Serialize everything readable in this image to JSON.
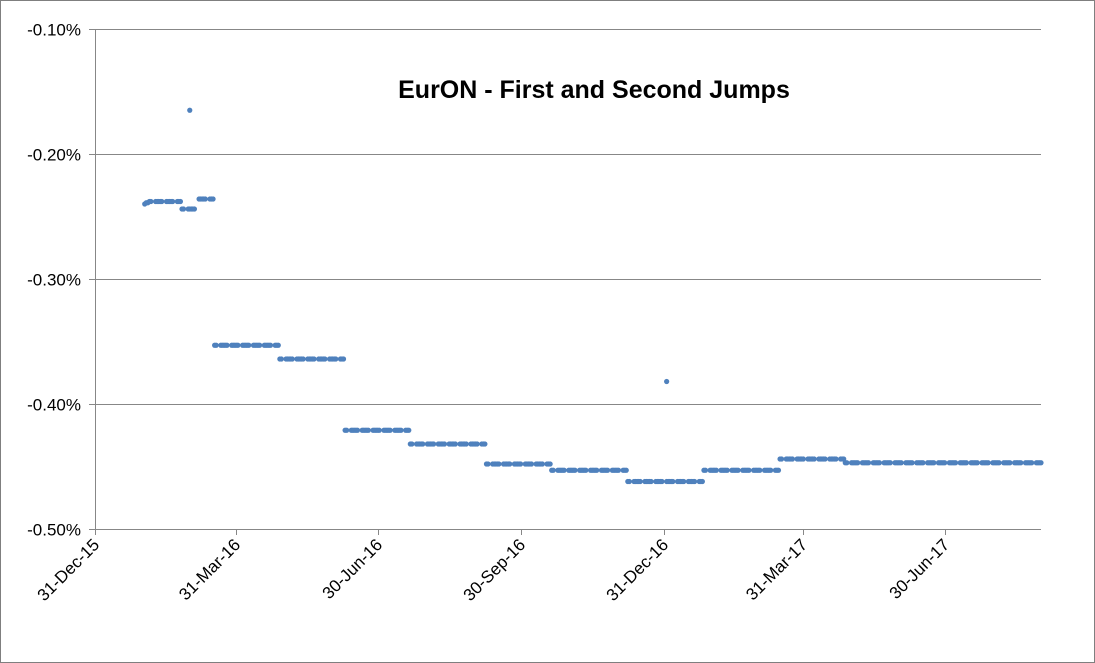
{
  "chart_data": {
    "type": "scatter",
    "title": "EurON - First and Second Jumps",
    "xlabel": "",
    "ylabel": "",
    "x_axis": {
      "kind": "date",
      "min": "2015-12-31",
      "max": "2017-08-31",
      "ticks": [
        {
          "date": "2015-12-31",
          "label": "31-Dec-15"
        },
        {
          "date": "2016-03-31",
          "label": "31-Mar-16"
        },
        {
          "date": "2016-06-30",
          "label": "30-Jun-16"
        },
        {
          "date": "2016-09-30",
          "label": "30-Sep-16"
        },
        {
          "date": "2016-12-31",
          "label": "31-Dec-16"
        },
        {
          "date": "2017-03-31",
          "label": "31-Mar-17"
        },
        {
          "date": "2017-06-30",
          "label": "30-Jun-17"
        }
      ]
    },
    "y_axis": {
      "ylim": [
        -0.5,
        -0.1
      ],
      "unit": "%",
      "ticks": [
        {
          "value": -0.1,
          "label": "-0.10%"
        },
        {
          "value": -0.2,
          "label": "-0.20%"
        },
        {
          "value": -0.3,
          "label": "-0.30%"
        },
        {
          "value": -0.4,
          "label": "-0.40%"
        },
        {
          "value": -0.5,
          "label": "-0.50%"
        }
      ]
    },
    "grid": "horizontal",
    "legend": "none",
    "marker_color": "#4f81bd",
    "segments": [
      {
        "start": "2016-02-01",
        "end": "2016-02-01",
        "value": -0.24
      },
      {
        "start": "2016-02-02",
        "end": "2016-02-03",
        "value": -0.239
      },
      {
        "start": "2016-02-04",
        "end": "2016-02-24",
        "value": -0.238
      },
      {
        "start": "2016-02-25",
        "end": "2016-03-04",
        "value": -0.244
      },
      {
        "start": "2016-03-05",
        "end": "2016-03-16",
        "value": -0.236
      },
      {
        "start": "2016-03-17",
        "end": "2016-04-27",
        "value": -0.353
      },
      {
        "start": "2016-04-28",
        "end": "2016-06-08",
        "value": -0.364
      },
      {
        "start": "2016-06-09",
        "end": "2016-07-20",
        "value": -0.421
      },
      {
        "start": "2016-07-21",
        "end": "2016-09-07",
        "value": -0.432
      },
      {
        "start": "2016-09-08",
        "end": "2016-10-19",
        "value": -0.448
      },
      {
        "start": "2016-10-20",
        "end": "2016-12-07",
        "value": -0.453
      },
      {
        "start": "2016-12-08",
        "end": "2017-01-25",
        "value": -0.462
      },
      {
        "start": "2017-01-26",
        "end": "2017-03-15",
        "value": -0.453
      },
      {
        "start": "2017-03-16",
        "end": "2017-04-26",
        "value": -0.444
      },
      {
        "start": "2017-04-27",
        "end": "2017-08-31",
        "value": -0.447
      }
    ],
    "outliers": [
      {
        "x": "2016-03-01",
        "y": -0.165
      },
      {
        "x": "2017-01-02",
        "y": -0.382
      }
    ]
  }
}
